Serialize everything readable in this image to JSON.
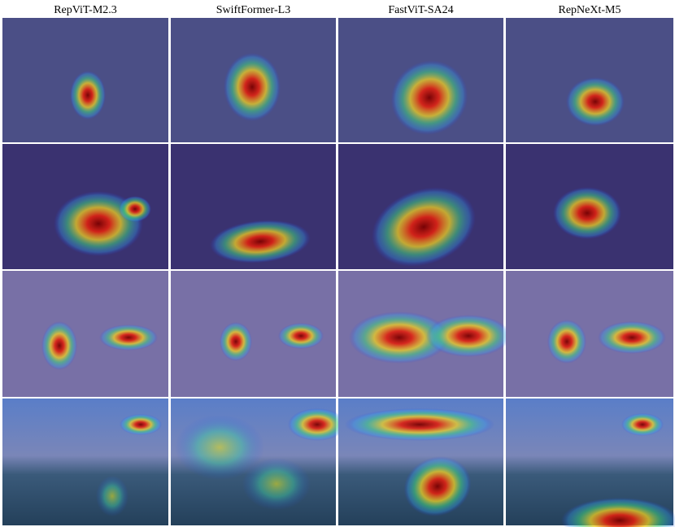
{
  "figure": {
    "columns": [
      "RepViT-M2.3",
      "SwiftFormer-L3",
      "FastViT-SA24",
      "RepNeXt-M5"
    ]
  }
}
